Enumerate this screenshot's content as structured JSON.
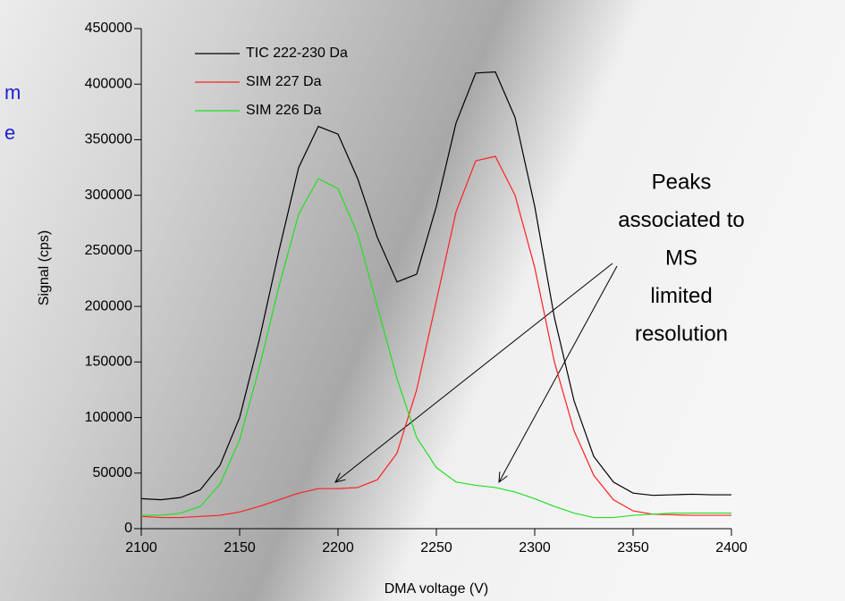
{
  "chart_data": {
    "type": "line",
    "x": [
      2100,
      2110,
      2120,
      2130,
      2140,
      2150,
      2160,
      2170,
      2180,
      2190,
      2200,
      2210,
      2220,
      2230,
      2240,
      2250,
      2260,
      2270,
      2280,
      2290,
      2300,
      2310,
      2320,
      2330,
      2340,
      2350,
      2360,
      2370,
      2380,
      2390,
      2400
    ],
    "series": [
      {
        "name": "TIC 222-230 Da",
        "color": "#000000",
        "values": [
          27000,
          26000,
          28000,
          35000,
          57000,
          100000,
          170000,
          250000,
          325000,
          362000,
          355000,
          315000,
          262000,
          222000,
          229000,
          290000,
          365000,
          410000,
          411000,
          370000,
          290000,
          190000,
          115000,
          65000,
          42000,
          32000,
          30000,
          30500,
          31000,
          30500,
          30500
        ]
      },
      {
        "name": "SIM 227 Da",
        "color": "#ff2020",
        "values": [
          11000,
          10000,
          10000,
          11000,
          12000,
          15000,
          20000,
          26000,
          32000,
          36000,
          36000,
          37000,
          44000,
          68000,
          125000,
          205000,
          285000,
          331000,
          335000,
          300000,
          235000,
          150000,
          88000,
          48000,
          26000,
          16000,
          13000,
          12500,
          12000,
          12000,
          12000
        ]
      },
      {
        "name": "SIM 226 Da",
        "color": "#20e020",
        "values": [
          12000,
          12000,
          14000,
          20000,
          40000,
          80000,
          145000,
          218000,
          283000,
          315000,
          306000,
          265000,
          200000,
          135000,
          82000,
          55000,
          42000,
          39000,
          37000,
          33000,
          27000,
          20000,
          14000,
          10000,
          10000,
          12000,
          13000,
          14000,
          14000,
          14000,
          14000
        ]
      }
    ],
    "xlim": [
      2100,
      2400
    ],
    "xticks": [
      2100,
      2150,
      2200,
      2250,
      2300,
      2350,
      2400
    ],
    "ylim": [
      0,
      450000
    ],
    "yticks": [
      0,
      50000,
      100000,
      150000,
      200000,
      250000,
      300000,
      350000,
      400000,
      450000
    ],
    "xlabel": "DMA voltage (V)",
    "ylabel": "Signal (cps)",
    "annotation": [
      "Peaks",
      "associated to",
      "MS",
      "limited",
      "resolution"
    ],
    "left_fragments": [
      "m",
      "e"
    ]
  }
}
